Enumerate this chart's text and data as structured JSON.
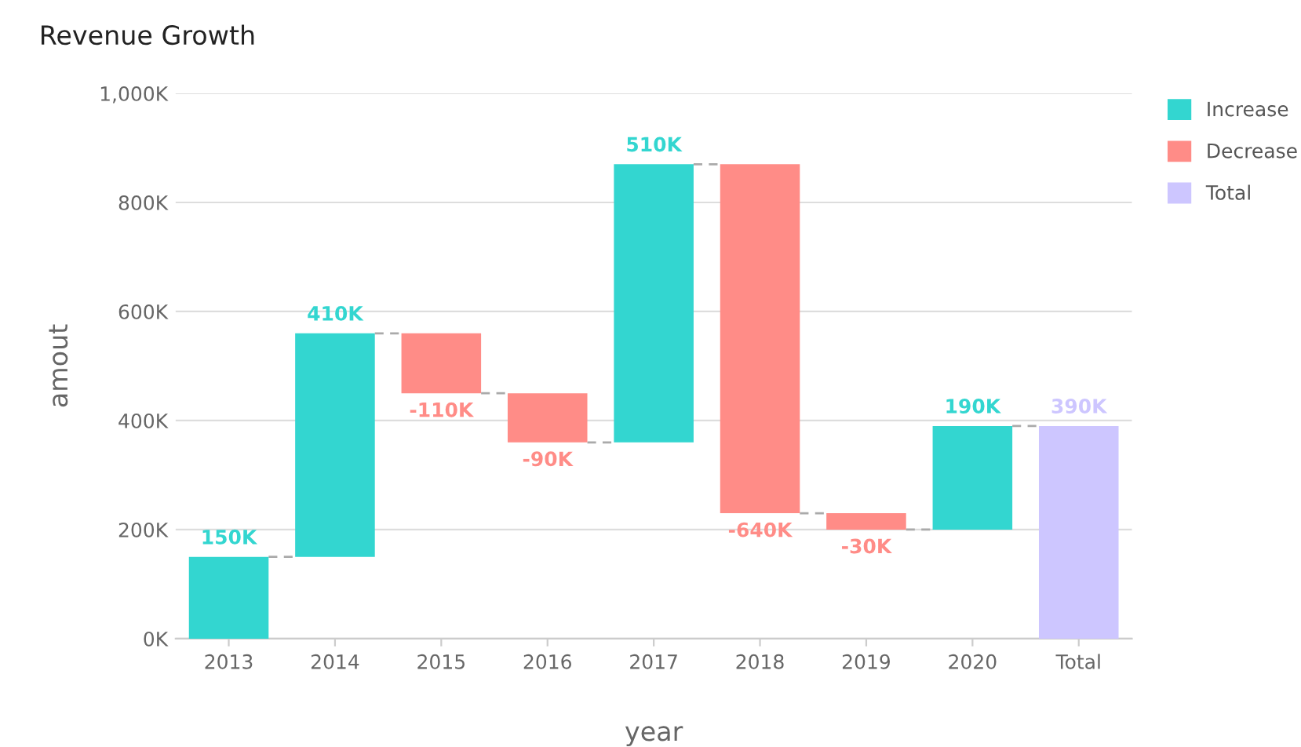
{
  "chart_data": {
    "type": "bar",
    "title": "Revenue Growth",
    "xlabel": "year",
    "ylabel": "amout",
    "categories": [
      "2013",
      "2014",
      "2015",
      "2016",
      "2017",
      "2018",
      "2019",
      "2020",
      "Total"
    ],
    "series": [
      {
        "name": "Increase",
        "color": "#33d6d0",
        "base": [
          0,
          150000,
          null,
          null,
          360000,
          null,
          null,
          200000,
          null
        ],
        "values": [
          150000,
          410000,
          null,
          null,
          510000,
          null,
          null,
          190000,
          null
        ],
        "value_labels": [
          "150K",
          "410K",
          null,
          null,
          "510K",
          null,
          null,
          "190K",
          null
        ]
      },
      {
        "name": "Decrease",
        "color": "#ff8c87",
        "base": [
          null,
          null,
          560000,
          450000,
          null,
          870000,
          230000,
          null,
          null
        ],
        "values": [
          null,
          null,
          -110000,
          -90000,
          null,
          -640000,
          -30000,
          null,
          null
        ],
        "value_labels": [
          null,
          null,
          "-110K",
          "-90K",
          null,
          "-640K",
          "-30K",
          null,
          null
        ]
      },
      {
        "name": "Total",
        "color": "#cdc6ff",
        "base": [
          null,
          null,
          null,
          null,
          null,
          null,
          null,
          null,
          0
        ],
        "values": [
          null,
          null,
          null,
          null,
          null,
          null,
          null,
          null,
          390000
        ],
        "value_labels": [
          null,
          null,
          null,
          null,
          null,
          null,
          null,
          null,
          "390K"
        ]
      }
    ],
    "ylim": [
      0,
      1000000
    ],
    "yticks": [
      {
        "value": 0,
        "label": "0K"
      },
      {
        "value": 200000,
        "label": "200K"
      },
      {
        "value": 400000,
        "label": "400K"
      },
      {
        "value": 600000,
        "label": "600K"
      },
      {
        "value": 800000,
        "label": "800K"
      },
      {
        "value": 1000000,
        "label": "1,000K"
      }
    ],
    "grid": "y",
    "legend": "top right"
  }
}
